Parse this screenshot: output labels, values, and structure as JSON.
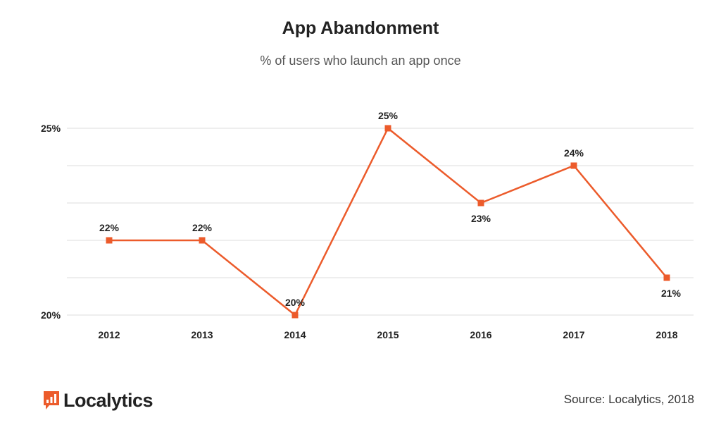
{
  "header": {
    "title": "App Abandonment",
    "subtitle": "% of users who launch an app once"
  },
  "footer": {
    "brand": "Localytics",
    "source": "Source: Localytics, 2018"
  },
  "colors": {
    "series": "#ec5b2b",
    "grid": "#dddddd",
    "text": "#222222"
  },
  "chart_data": {
    "type": "line",
    "title": "App Abandonment",
    "subtitle": "% of users who launch an app once",
    "x": [
      "2012",
      "2013",
      "2014",
      "2015",
      "2016",
      "2017",
      "2018"
    ],
    "series": [
      {
        "values": [
          22,
          22,
          20,
          25,
          23,
          24,
          21
        ]
      }
    ],
    "data_labels": [
      "22%",
      "22%",
      "20%",
      "25%",
      "23%",
      "24%",
      "21%"
    ],
    "ytick_labels": [
      "25%",
      "20%"
    ],
    "yticks": [
      25,
      20
    ],
    "ylim": [
      20,
      25
    ],
    "grid": true,
    "marker": "square"
  }
}
